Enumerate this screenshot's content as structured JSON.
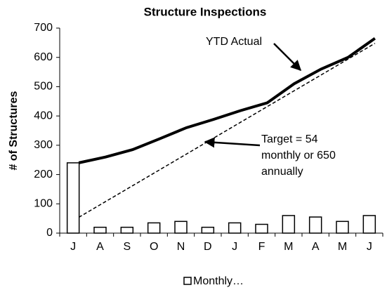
{
  "chart_data": {
    "type": "bar",
    "title": "Structure Inspections",
    "y_label": "# of Structures",
    "categories": [
      "J",
      "A",
      "S",
      "O",
      "N",
      "D",
      "J",
      "F",
      "M",
      "A",
      "M",
      "J"
    ],
    "series": [
      {
        "name": "Monthly…",
        "type": "bar",
        "color": "#ffffff",
        "in_legend": true,
        "values": [
          240,
          20,
          20,
          35,
          40,
          20,
          35,
          30,
          60,
          55,
          40,
          60
        ]
      },
      {
        "name": "YTD Actual",
        "type": "line",
        "color": "#000000",
        "dashed": false,
        "values": [
          240,
          260,
          285,
          322,
          360,
          388,
          418,
          445,
          510,
          560,
          600,
          665
        ]
      },
      {
        "type": "line",
        "color": "#000000",
        "dashed": true,
        "values": [
          54,
          108,
          162,
          216,
          270,
          324,
          378,
          432,
          486,
          540,
          594,
          648
        ]
      }
    ],
    "annotation": [
      "Target = 54",
      "monthly or 650",
      "annually"
    ],
    "ylim": [
      0,
      700
    ],
    "yticks": [
      0,
      100,
      200,
      300,
      400,
      500,
      600,
      700
    ],
    "legend": "bottom"
  }
}
